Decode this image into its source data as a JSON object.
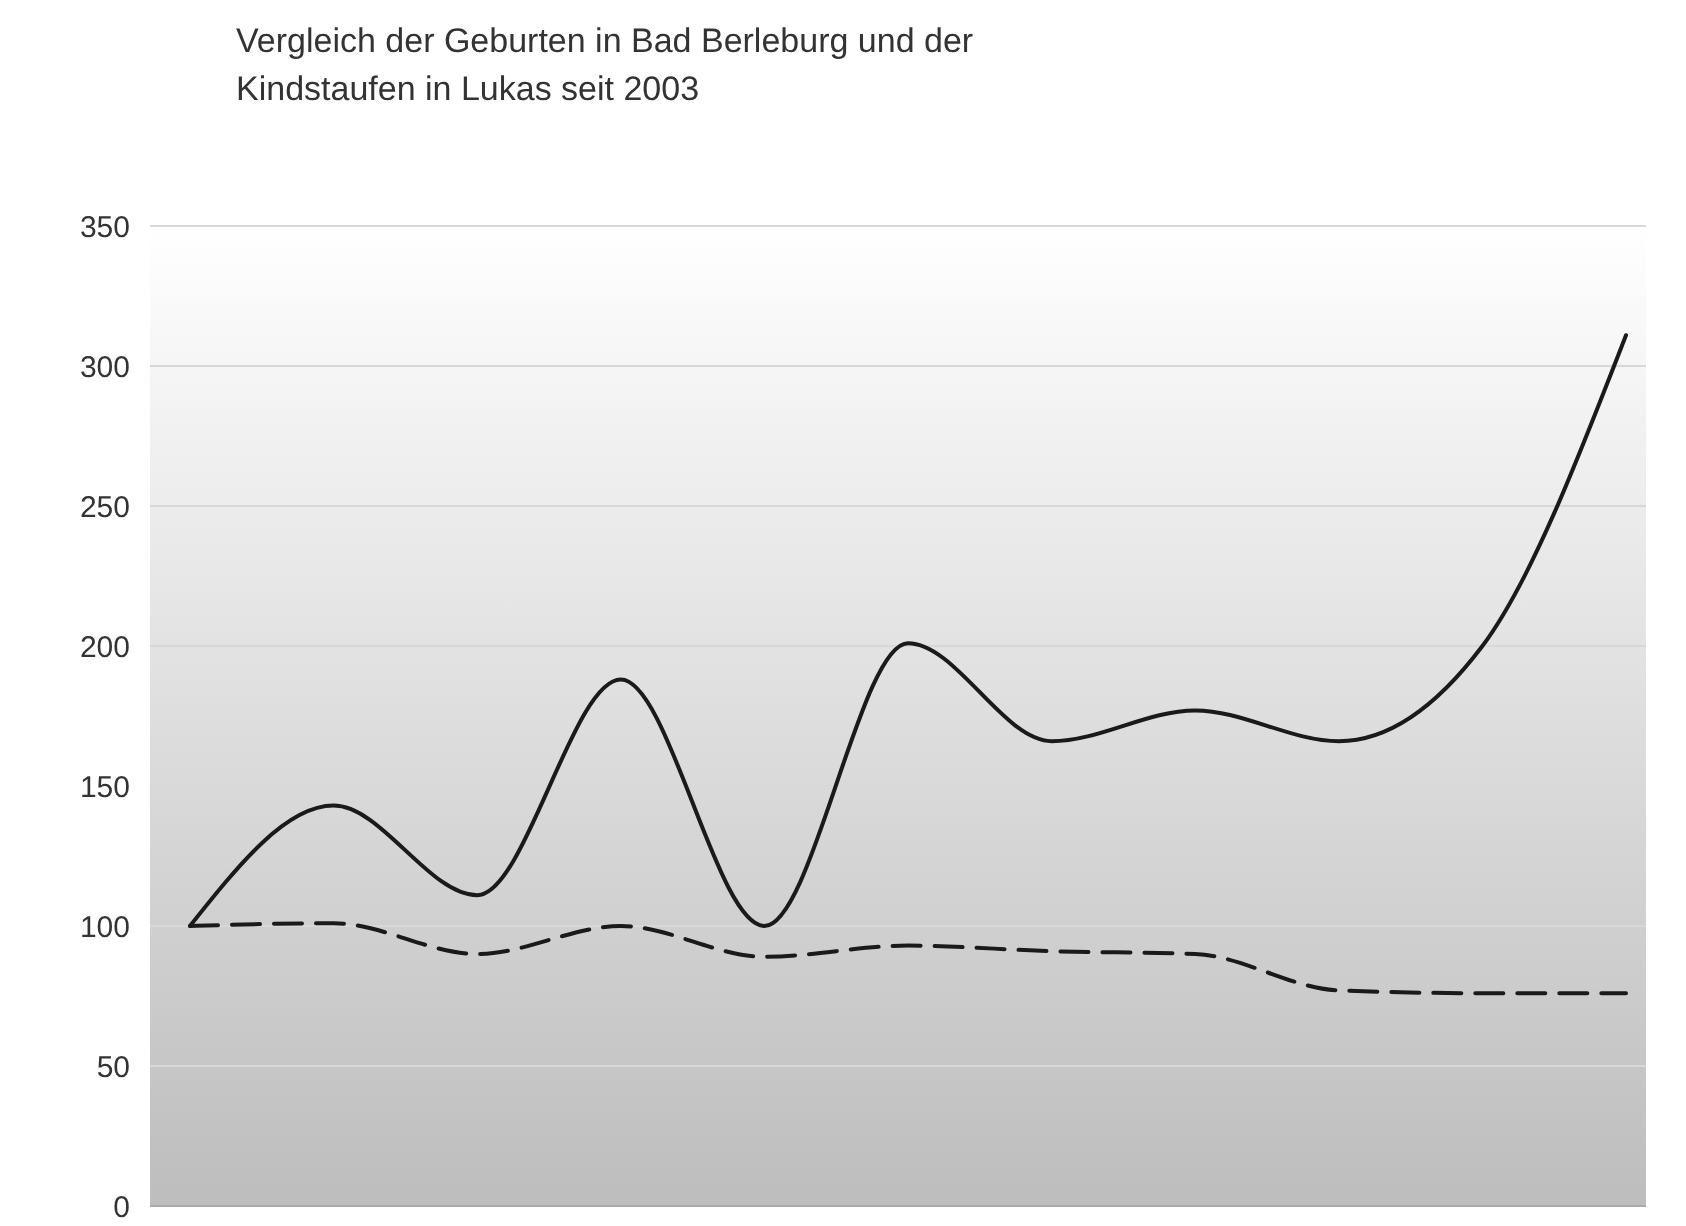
{
  "chart_data": {
    "type": "line",
    "title": "Vergleich der Geburten in Bad Berleburg und der\nKindstaufen in Lukas seit 2003",
    "categories": [
      null,
      null,
      null,
      null,
      null,
      null,
      null,
      null,
      null,
      null,
      null
    ],
    "series": [
      {
        "color": "#1a1a1a",
        "line_style": "solid",
        "values": [
          100,
          143,
          111,
          188,
          100,
          201,
          166,
          177,
          166,
          200,
          311
        ]
      },
      {
        "color": "#1a1a1a",
        "line_style": "dashed",
        "values": [
          100,
          101,
          90,
          100,
          89,
          93,
          91,
          90,
          77,
          76,
          76
        ]
      }
    ],
    "ylim": [
      0,
      350
    ],
    "yticks": [
      0,
      50,
      100,
      150,
      200,
      250,
      300,
      350
    ],
    "grid": "y",
    "marker": "none"
  }
}
